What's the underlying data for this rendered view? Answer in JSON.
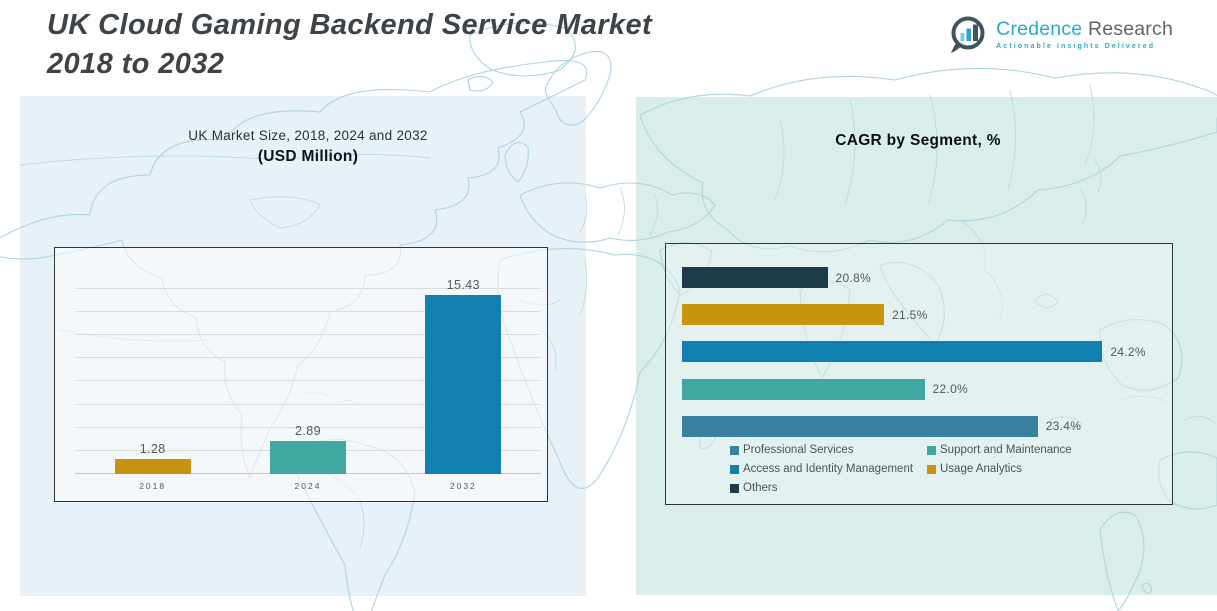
{
  "header": {
    "title_line1": "UK Cloud Gaming Backend Service Market",
    "title_line2": "2018 to 2032"
  },
  "logo": {
    "brand_primary": "Credence",
    "brand_secondary": "Research",
    "tagline": "Actionable Insights Delivered",
    "icon": "bar-chart-bubble-icon"
  },
  "chart_data": [
    {
      "type": "bar",
      "orientation": "vertical",
      "title": "UK Market Size, 2018, 2024 and 2032",
      "subtitle": "(USD Million)",
      "categories": [
        "2018",
        "2024",
        "2032"
      ],
      "values": [
        1.28,
        2.89,
        15.43
      ],
      "bar_colors": [
        "#C6940F",
        "#41A7A3",
        "#1180B0"
      ],
      "value_label_decimals": 2,
      "ylim": [
        0,
        19
      ],
      "grid_step": 2,
      "grid": true,
      "legend": "none"
    },
    {
      "type": "bar",
      "orientation": "horizontal",
      "title": "CAGR by Segment, %",
      "series": [
        {
          "name": "Professional Services",
          "value": 23.4,
          "color": "#3A80A0"
        },
        {
          "name": "Support and Maintenance",
          "value": 22.0,
          "color": "#41A7A3"
        },
        {
          "name": "Access and Identity Management",
          "value": 24.2,
          "color": "#1180B0"
        },
        {
          "name": "Usage Analytics",
          "value": 21.5,
          "color": "#C6940F"
        },
        {
          "name": "Others",
          "value": 20.8,
          "color": "#1D3B4A"
        }
      ],
      "display_order_top_to_bottom": [
        "Others",
        "Usage Analytics",
        "Access and Identity Management",
        "Support and Maintenance",
        "Professional Services"
      ],
      "value_suffix": "%",
      "value_label_decimals": 1,
      "xlim": [
        19,
        25
      ],
      "grid": false,
      "legend_position": "bottom"
    }
  ],
  "colors": {
    "accent_blue": "#1180B0",
    "accent_teal": "#41A7A3",
    "accent_gold": "#C6940F",
    "accent_steel": "#3A80A0",
    "accent_navy": "#1D3B4A",
    "left_panel_bg": "#E8F1F7",
    "right_panel_bg": "#D9EDEA",
    "map_stroke": "#AFD4DE",
    "title_text": "#3D4347",
    "label_text": "#595959",
    "logo_blue": "#2BA7D3",
    "logo_gray": "#5F6569",
    "logo_teal": "#33A9BC"
  }
}
